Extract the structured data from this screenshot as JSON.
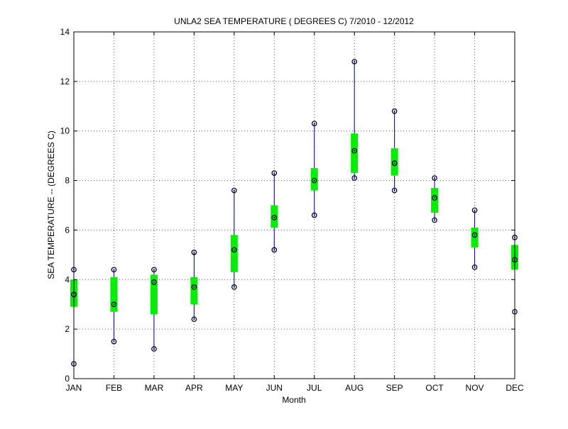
{
  "chart_data": {
    "type": "box",
    "title": "UNLA2  SEA TEMPERATURE ( DEGREES C) 7/2010 - 12/2012",
    "xlabel": "Month",
    "ylabel": "SEA TEMPERATURE -- (DEGREES C)",
    "categories": [
      "JAN",
      "FEB",
      "MAR",
      "APR",
      "MAY",
      "JUN",
      "JUL",
      "AUG",
      "SEP",
      "OCT",
      "NOV",
      "DEC"
    ],
    "ylim": [
      0,
      14
    ],
    "yticks": [
      0,
      2,
      4,
      6,
      8,
      10,
      12,
      14
    ],
    "grid": true,
    "series": [
      {
        "min": [
          0.6,
          1.5,
          1.2,
          2.4,
          3.7,
          5.2,
          6.6,
          8.1,
          7.6,
          6.4,
          4.5,
          2.7
        ],
        "q1": [
          2.9,
          2.7,
          2.6,
          3.0,
          4.3,
          6.1,
          7.6,
          8.3,
          8.2,
          6.7,
          5.3,
          4.4
        ],
        "median": [
          3.4,
          3.0,
          3.9,
          3.7,
          5.2,
          6.5,
          8.0,
          9.2,
          8.7,
          7.3,
          5.8,
          4.8
        ],
        "q3": [
          4.0,
          4.1,
          4.2,
          4.1,
          5.8,
          7.0,
          8.5,
          9.9,
          9.3,
          7.7,
          6.1,
          5.4
        ],
        "max": [
          4.4,
          4.4,
          4.4,
          5.1,
          7.6,
          8.3,
          10.3,
          12.8,
          10.8,
          8.1,
          6.8,
          5.7
        ]
      }
    ],
    "colors": {
      "whisker": "#00008b",
      "box": "#00ee00",
      "marker": "#000033",
      "grid": "#555555",
      "axis": "#000000"
    }
  }
}
